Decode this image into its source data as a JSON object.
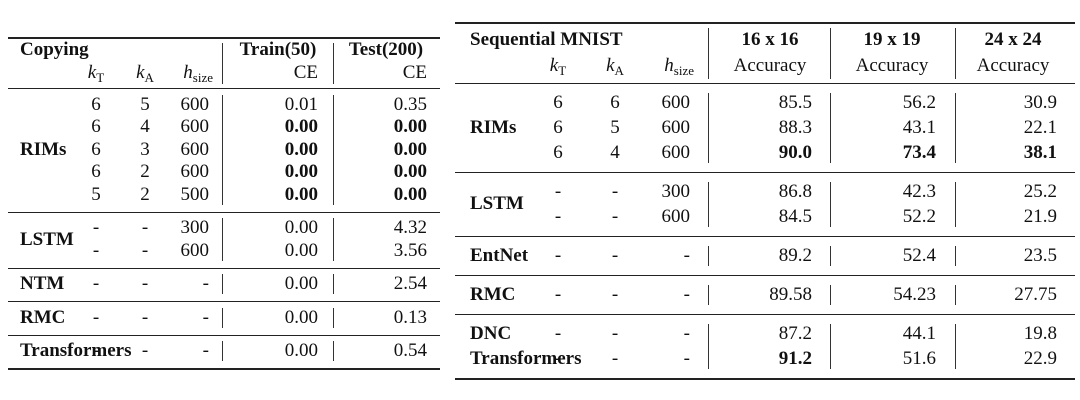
{
  "left_table": {
    "header": {
      "title": "Copying",
      "params": [
        {
          "symbol": "k",
          "sub": "T"
        },
        {
          "symbol": "k",
          "sub": "A"
        },
        {
          "symbol": "h",
          "sub": "size"
        }
      ],
      "metrics": [
        {
          "name": "Train(50)",
          "unit": "CE"
        },
        {
          "name": "Test(200)",
          "unit": "CE"
        }
      ]
    },
    "sections": [
      {
        "groups": [
          {
            "name": "RIMs",
            "rows": [
              {
                "cells": [
                  "6",
                  "5",
                  "600",
                  "0.01",
                  "0.35"
                ],
                "bold": []
              },
              {
                "cells": [
                  "6",
                  "4",
                  "600",
                  "0.00",
                  "0.00"
                ],
                "bold": [
                  3,
                  4
                ]
              },
              {
                "cells": [
                  "6",
                  "3",
                  "600",
                  "0.00",
                  "0.00"
                ],
                "bold": [
                  3,
                  4
                ]
              },
              {
                "cells": [
                  "6",
                  "2",
                  "600",
                  "0.00",
                  "0.00"
                ],
                "bold": [
                  3,
                  4
                ]
              },
              {
                "cells": [
                  "5",
                  "2",
                  "500",
                  "0.00",
                  "0.00"
                ],
                "bold": [
                  3,
                  4
                ]
              }
            ]
          }
        ]
      },
      {
        "groups": [
          {
            "name": "LSTM",
            "rows": [
              {
                "cells": [
                  "-",
                  "-",
                  "300",
                  "0.00",
                  "4.32"
                ],
                "bold": []
              },
              {
                "cells": [
                  "-",
                  "-",
                  "600",
                  "0.00",
                  "3.56"
                ],
                "bold": []
              }
            ]
          }
        ]
      },
      {
        "groups": [
          {
            "name": "NTM",
            "rows": [
              {
                "cells": [
                  "-",
                  "-",
                  "-",
                  "0.00",
                  "2.54"
                ],
                "bold": []
              }
            ]
          }
        ]
      },
      {
        "groups": [
          {
            "name": "RMC",
            "rows": [
              {
                "cells": [
                  "-",
                  "-",
                  "-",
                  "0.00",
                  "0.13"
                ],
                "bold": []
              }
            ]
          }
        ]
      },
      {
        "groups": [
          {
            "name": "Transformers",
            "rows": [
              {
                "cells": [
                  "-",
                  "-",
                  "-",
                  "0.00",
                  "0.54"
                ],
                "bold": []
              }
            ]
          }
        ]
      }
    ]
  },
  "right_table": {
    "header": {
      "title": "Sequential MNIST",
      "params": [
        {
          "symbol": "k",
          "sub": "T"
        },
        {
          "symbol": "k",
          "sub": "A"
        },
        {
          "symbol": "h",
          "sub": "size"
        }
      ],
      "metrics": [
        {
          "name": "16 x 16",
          "unit": "Accuracy"
        },
        {
          "name": "19 x 19",
          "unit": "Accuracy"
        },
        {
          "name": "24 x 24",
          "unit": "Accuracy"
        }
      ]
    },
    "sections": [
      {
        "groups": [
          {
            "name": "RIMs",
            "rows": [
              {
                "cells": [
                  "6",
                  "6",
                  "600",
                  "85.5",
                  "56.2",
                  "30.9"
                ],
                "bold": []
              },
              {
                "cells": [
                  "6",
                  "5",
                  "600",
                  "88.3",
                  "43.1",
                  "22.1"
                ],
                "bold": []
              },
              {
                "cells": [
                  "6",
                  "4",
                  "600",
                  "90.0",
                  "73.4",
                  "38.1"
                ],
                "bold": [
                  3,
                  4,
                  5
                ]
              }
            ]
          }
        ]
      },
      {
        "groups": [
          {
            "name": "LSTM",
            "rows": [
              {
                "cells": [
                  "-",
                  "-",
                  "300",
                  "86.8",
                  "42.3",
                  "25.2"
                ],
                "bold": []
              },
              {
                "cells": [
                  "-",
                  "-",
                  "600",
                  "84.5",
                  "52.2",
                  "21.9"
                ],
                "bold": []
              }
            ]
          }
        ]
      },
      {
        "groups": [
          {
            "name": "EntNet",
            "rows": [
              {
                "cells": [
                  "-",
                  "-",
                  "-",
                  "89.2",
                  "52.4",
                  "23.5"
                ],
                "bold": []
              }
            ]
          }
        ]
      },
      {
        "groups": [
          {
            "name": "RMC",
            "rows": [
              {
                "cells": [
                  "-",
                  "-",
                  "-",
                  "89.58",
                  "54.23",
                  "27.75"
                ],
                "bold": []
              }
            ]
          }
        ]
      },
      {
        "groups": [
          {
            "name": "DNC",
            "rows": [
              {
                "cells": [
                  "-",
                  "-",
                  "-",
                  "87.2",
                  "44.1",
                  "19.8"
                ],
                "bold": []
              }
            ]
          },
          {
            "name": "Transformers",
            "rows": [
              {
                "cells": [
                  "-",
                  "-",
                  "-",
                  "91.2",
                  "51.6",
                  "22.9"
                ],
                "bold": [
                  3
                ]
              }
            ]
          }
        ]
      }
    ]
  }
}
